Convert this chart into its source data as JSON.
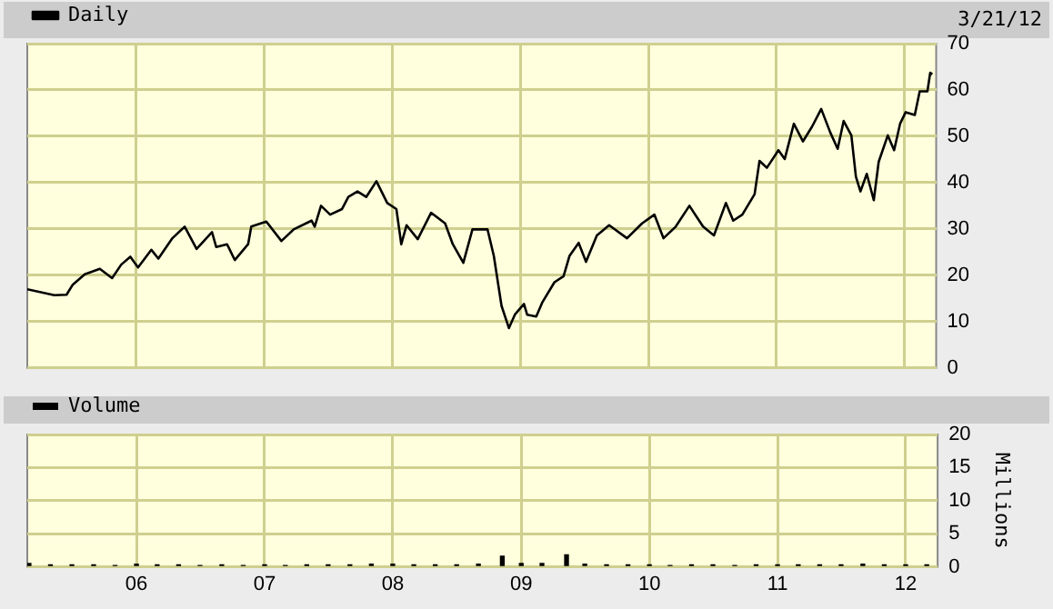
{
  "chart_data": [
    {
      "type": "line",
      "legend": "top left",
      "grid": true,
      "tick_labels": "y",
      "annotations": [
        "3/21/12"
      ],
      "xlim": [
        "2005-02-24",
        "2012-04-01"
      ],
      "xticks": [
        {
          "value": "2006-01-01",
          "label": null
        },
        {
          "value": "2007-01-01",
          "label": null
        },
        {
          "value": "2008-01-01",
          "label": null
        },
        {
          "value": "2009-01-01",
          "label": null
        },
        {
          "value": "2010-01-01",
          "label": null
        },
        {
          "value": "2011-01-01",
          "label": null
        },
        {
          "value": "2012-01-01",
          "label": null
        }
      ],
      "ylim": [
        0,
        70
      ],
      "yticks": [
        0,
        10,
        20,
        30,
        40,
        50,
        60,
        70
      ],
      "x": [
        "2005-02-24",
        "2005-05-12",
        "2005-06-16",
        "2005-07-03",
        "2005-08-07",
        "2005-09-19",
        "2005-10-24",
        "2005-11-19",
        "2005-12-15",
        "2006-01-06",
        "2006-02-13",
        "2006-03-05",
        "2006-04-14",
        "2006-05-19",
        "2006-06-22",
        "2006-08-05",
        "2006-08-17",
        "2006-09-17",
        "2006-10-09",
        "2006-11-16",
        "2006-11-25",
        "2007-01-07",
        "2007-02-19",
        "2007-03-26",
        "2007-05-16",
        "2007-05-25",
        "2007-06-12",
        "2007-07-08",
        "2007-08-11",
        "2007-08-29",
        "2007-09-24",
        "2007-10-19",
        "2007-11-17",
        "2007-12-18",
        "2008-01-13",
        "2008-01-27",
        "2008-02-11",
        "2008-03-14",
        "2008-04-21",
        "2008-05-31",
        "2008-06-22",
        "2008-07-22",
        "2008-08-17",
        "2008-09-29",
        "2008-10-17",
        "2008-11-08",
        "2008-11-29",
        "2008-12-16",
        "2009-01-11",
        "2009-01-20",
        "2009-02-15",
        "2009-03-04",
        "2009-04-08",
        "2009-05-04",
        "2009-05-21",
        "2009-06-16",
        "2009-07-07",
        "2009-08-07",
        "2009-09-11",
        "2009-11-01",
        "2009-12-14",
        "2010-01-18",
        "2010-02-13",
        "2010-03-20",
        "2010-04-28",
        "2010-06-06",
        "2010-07-07",
        "2010-08-10",
        "2010-08-31",
        "2010-09-26",
        "2010-10-31",
        "2010-11-14",
        "2010-12-05",
        "2011-01-07",
        "2011-01-25",
        "2011-02-20",
        "2011-03-18",
        "2011-04-13",
        "2011-05-09",
        "2011-06-04",
        "2011-06-25",
        "2011-07-12",
        "2011-08-03",
        "2011-08-16",
        "2011-08-29",
        "2011-09-16",
        "2011-10-06",
        "2011-10-20",
        "2011-11-15",
        "2011-12-03",
        "2011-12-20",
        "2012-01-05",
        "2012-01-31",
        "2012-02-14",
        "2012-03-07",
        "2012-03-15",
        "2012-03-21"
      ],
      "series": [
        {
          "name": "Daily",
          "color": "#000000",
          "values": [
            17.0,
            15.7,
            15.8,
            17.9,
            20.2,
            21.4,
            19.4,
            22.3,
            24.0,
            21.7,
            25.5,
            23.6,
            28.0,
            30.5,
            25.7,
            29.3,
            26.1,
            26.7,
            23.3,
            26.7,
            30.5,
            31.6,
            27.4,
            29.9,
            31.8,
            30.5,
            35.0,
            33.1,
            34.3,
            36.9,
            38.1,
            36.9,
            40.3,
            35.6,
            34.3,
            26.7,
            30.8,
            27.8,
            33.5,
            31.2,
            26.7,
            22.7,
            29.9,
            29.9,
            24.2,
            13.4,
            8.6,
            11.5,
            13.8,
            11.5,
            11.1,
            14.1,
            18.5,
            19.8,
            24.2,
            27.0,
            22.9,
            28.6,
            30.8,
            28.0,
            31.2,
            33.1,
            28.0,
            30.5,
            35.0,
            30.5,
            28.6,
            35.6,
            31.8,
            33.1,
            37.5,
            44.7,
            43.2,
            47.0,
            45.1,
            52.7,
            48.9,
            52.1,
            55.9,
            50.8,
            47.3,
            53.3,
            50.2,
            41.3,
            38.1,
            41.9,
            36.2,
            44.5,
            50.2,
            47.0,
            52.7,
            55.2,
            54.6,
            59.7,
            59.7,
            63.7,
            63.4
          ]
        }
      ]
    },
    {
      "type": "bar",
      "legend": "top left",
      "grid": true,
      "ylabel": "Millions",
      "xlim": [
        "2005-02-24",
        "2012-04-01"
      ],
      "xticks": [
        {
          "value": "2006-01-01",
          "label": "06"
        },
        {
          "value": "2007-01-01",
          "label": "07"
        },
        {
          "value": "2008-01-01",
          "label": "08"
        },
        {
          "value": "2009-01-01",
          "label": "09"
        },
        {
          "value": "2010-01-01",
          "label": "10"
        },
        {
          "value": "2011-01-01",
          "label": "11"
        },
        {
          "value": "2012-01-01",
          "label": "12"
        }
      ],
      "ylim": [
        0,
        20
      ],
      "yticks": [
        0,
        5,
        10,
        15,
        20
      ],
      "x": [
        "2005-03-01",
        "2005-05-01",
        "2005-07-01",
        "2005-09-01",
        "2005-11-01",
        "2006-01-01",
        "2006-03-01",
        "2006-05-01",
        "2006-07-01",
        "2006-09-01",
        "2006-11-01",
        "2007-01-01",
        "2007-03-01",
        "2007-05-01",
        "2007-07-01",
        "2007-09-01",
        "2007-11-01",
        "2008-01-01",
        "2008-03-01",
        "2008-05-01",
        "2008-07-01",
        "2008-09-01",
        "2008-11-08",
        "2009-01-01",
        "2009-03-01",
        "2009-05-10",
        "2009-07-01",
        "2009-09-01",
        "2009-11-01",
        "2010-01-01",
        "2010-03-01",
        "2010-05-01",
        "2010-07-01",
        "2010-09-01",
        "2010-11-01",
        "2011-01-01",
        "2011-03-01",
        "2011-05-01",
        "2011-07-01",
        "2011-09-01",
        "2011-11-01",
        "2012-01-01",
        "2012-03-01"
      ],
      "series": [
        {
          "name": "Volume",
          "color": "#000000",
          "values": [
            0.5,
            0.3,
            0.3,
            0.3,
            0.2,
            0.4,
            0.3,
            0.3,
            0.2,
            0.3,
            0.2,
            0.3,
            0.2,
            0.3,
            0.3,
            0.3,
            0.4,
            0.4,
            0.3,
            0.3,
            0.3,
            0.4,
            1.6,
            0.5,
            0.5,
            1.8,
            0.4,
            0.3,
            0.3,
            0.3,
            0.2,
            0.3,
            0.3,
            0.2,
            0.3,
            0.3,
            0.3,
            0.3,
            0.3,
            0.4,
            0.3,
            0.3,
            0.3
          ]
        }
      ]
    }
  ]
}
